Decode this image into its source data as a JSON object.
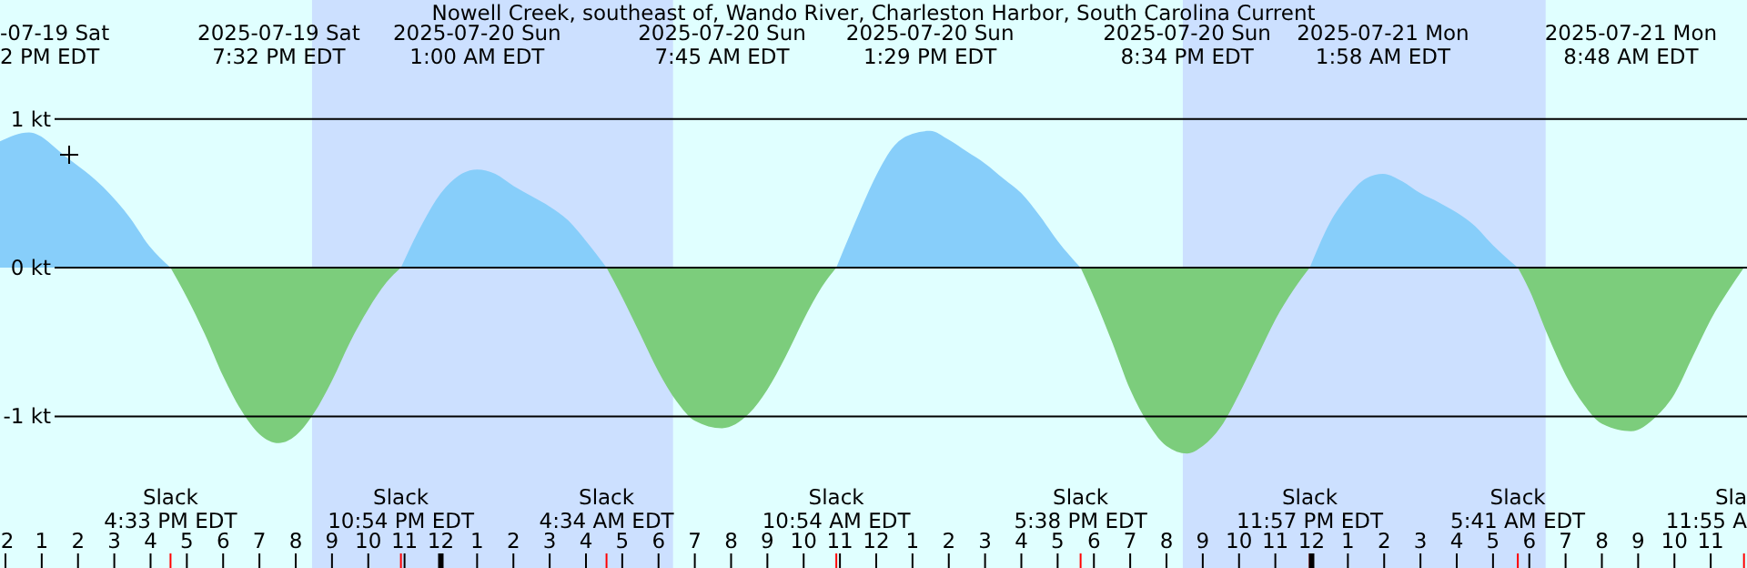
{
  "chart_data": {
    "type": "area",
    "title": "Nowell Creek, southeast of, Wando River, Charleston Harbor, South Carolina Current",
    "series": [
      {
        "color": "#87cefa",
        "x": [
          "2025-07-19T11:51",
          "2025-07-19T12:39",
          "2025-07-19T13:42",
          "2025-07-19T14:42",
          "2025-07-19T15:27",
          "2025-07-19T15:57",
          "2025-07-19T16:33"
        ],
        "values": [
          0.85,
          0.91,
          0.74,
          0.54,
          0.33,
          0.15,
          0
        ]
      },
      {
        "color": "#7ccd7c",
        "x": [
          "2025-07-19T16:33",
          "2025-07-19T17:00",
          "2025-07-19T17:30",
          "2025-07-19T18:00",
          "2025-07-19T18:30",
          "2025-07-19T19:00",
          "2025-07-19T19:32",
          "2025-07-19T20:00",
          "2025-07-19T20:30",
          "2025-07-19T21:00",
          "2025-07-19T21:30",
          "2025-07-19T22:00",
          "2025-07-19T22:30",
          "2025-07-19T22:54"
        ],
        "values": [
          0,
          -0.2,
          -0.45,
          -0.73,
          -0.96,
          -1.12,
          -1.18,
          -1.13,
          -0.98,
          -0.76,
          -0.5,
          -0.28,
          -0.1,
          0
        ]
      },
      {
        "color": "#87cefa",
        "x": [
          "2025-07-19T22:54",
          "2025-07-19T23:30",
          "2025-07-20T00:00",
          "2025-07-20T00:30",
          "2025-07-20T01:00",
          "2025-07-20T01:30",
          "2025-07-20T02:00",
          "2025-07-20T02:30",
          "2025-07-20T03:00",
          "2025-07-20T03:30",
          "2025-07-20T04:00",
          "2025-07-20T04:34"
        ],
        "values": [
          0,
          0.3,
          0.5,
          0.62,
          0.66,
          0.63,
          0.55,
          0.48,
          0.41,
          0.32,
          0.18,
          0
        ]
      },
      {
        "color": "#7ccd7c",
        "x": [
          "2025-07-20T04:34",
          "2025-07-20T05:00",
          "2025-07-20T05:30",
          "2025-07-20T06:00",
          "2025-07-20T06:30",
          "2025-07-20T07:00",
          "2025-07-20T07:45",
          "2025-07-20T08:30",
          "2025-07-20T09:00",
          "2025-07-20T09:30",
          "2025-07-20T10:00",
          "2025-07-20T10:30",
          "2025-07-20T10:54"
        ],
        "values": [
          0,
          -0.2,
          -0.45,
          -0.7,
          -0.9,
          -1.03,
          -1.08,
          -0.98,
          -0.82,
          -0.6,
          -0.35,
          -0.13,
          0
        ]
      },
      {
        "color": "#87cefa",
        "x": [
          "2025-07-20T10:54",
          "2025-07-20T11:30",
          "2025-07-20T12:00",
          "2025-07-20T12:30",
          "2025-07-20T13:00",
          "2025-07-20T13:29",
          "2025-07-20T14:00",
          "2025-07-20T14:30",
          "2025-07-20T15:00",
          "2025-07-20T15:30",
          "2025-07-20T16:00",
          "2025-07-20T16:30",
          "2025-07-20T17:00",
          "2025-07-20T17:38"
        ],
        "values": [
          0,
          0.35,
          0.62,
          0.82,
          0.9,
          0.92,
          0.86,
          0.78,
          0.7,
          0.6,
          0.5,
          0.35,
          0.18,
          0
        ]
      },
      {
        "color": "#7ccd7c",
        "x": [
          "2025-07-20T17:38",
          "2025-07-20T18:00",
          "2025-07-20T18:30",
          "2025-07-20T19:00",
          "2025-07-20T19:30",
          "2025-07-20T20:00",
          "2025-07-20T20:34",
          "2025-07-20T21:00",
          "2025-07-20T21:30",
          "2025-07-20T22:00",
          "2025-07-20T22:30",
          "2025-07-20T23:00",
          "2025-07-20T23:30",
          "2025-07-20T23:57"
        ],
        "values": [
          0,
          -0.2,
          -0.5,
          -0.82,
          -1.05,
          -1.2,
          -1.25,
          -1.2,
          -1.07,
          -0.85,
          -0.6,
          -0.35,
          -0.15,
          0
        ]
      },
      {
        "color": "#87cefa",
        "x": [
          "2025-07-20T23:57",
          "2025-07-21T00:30",
          "2025-07-21T01:00",
          "2025-07-21T01:30",
          "2025-07-21T01:58",
          "2025-07-21T02:30",
          "2025-07-21T03:00",
          "2025-07-21T03:30",
          "2025-07-21T04:00",
          "2025-07-21T04:30",
          "2025-07-21T05:00",
          "2025-07-21T05:41"
        ],
        "values": [
          0,
          0.3,
          0.48,
          0.6,
          0.63,
          0.58,
          0.5,
          0.44,
          0.37,
          0.28,
          0.15,
          0
        ]
      },
      {
        "color": "#7ccd7c",
        "x": [
          "2025-07-21T05:41",
          "2025-07-21T06:00",
          "2025-07-21T06:30",
          "2025-07-21T07:00",
          "2025-07-21T07:30",
          "2025-07-21T08:00",
          "2025-07-21T08:48",
          "2025-07-21T09:30",
          "2025-07-21T10:00",
          "2025-07-21T10:30",
          "2025-07-21T11:00",
          "2025-07-21T11:30",
          "2025-07-21T11:55"
        ],
        "values": [
          0,
          -0.15,
          -0.45,
          -0.72,
          -0.92,
          -1.05,
          -1.1,
          -1,
          -0.85,
          -0.6,
          -0.35,
          -0.15,
          0
        ]
      }
    ],
    "xlim": [
      "2025-07-19T11:51",
      "2025-07-21T12:00"
    ],
    "xticks": [
      {
        "value": "2025-07-19T12:00",
        "label": "2"
      },
      {
        "value": "2025-07-19T13:00",
        "label": "1"
      },
      {
        "value": "2025-07-19T14:00",
        "label": "2"
      },
      {
        "value": "2025-07-19T15:00",
        "label": "3"
      },
      {
        "value": "2025-07-19T16:00",
        "label": "4"
      },
      {
        "value": "2025-07-19T17:00",
        "label": "5"
      },
      {
        "value": "2025-07-19T18:00",
        "label": "6"
      },
      {
        "value": "2025-07-19T19:00",
        "label": "7"
      },
      {
        "value": "2025-07-19T20:00",
        "label": "8"
      },
      {
        "value": "2025-07-19T21:00",
        "label": "9"
      },
      {
        "value": "2025-07-19T22:00",
        "label": "10"
      },
      {
        "value": "2025-07-19T23:00",
        "label": "11"
      },
      {
        "value": "2025-07-20T00:00",
        "label": "12"
      },
      {
        "value": "2025-07-20T01:00",
        "label": "1"
      },
      {
        "value": "2025-07-20T02:00",
        "label": "2"
      },
      {
        "value": "2025-07-20T03:00",
        "label": "3"
      },
      {
        "value": "2025-07-20T04:00",
        "label": "4"
      },
      {
        "value": "2025-07-20T05:00",
        "label": "5"
      },
      {
        "value": "2025-07-20T06:00",
        "label": "6"
      },
      {
        "value": "2025-07-20T07:00",
        "label": "7"
      },
      {
        "value": "2025-07-20T08:00",
        "label": "8"
      },
      {
        "value": "2025-07-20T09:00",
        "label": "9"
      },
      {
        "value": "2025-07-20T10:00",
        "label": "10"
      },
      {
        "value": "2025-07-20T11:00",
        "label": "11"
      },
      {
        "value": "2025-07-20T12:00",
        "label": "12"
      },
      {
        "value": "2025-07-20T13:00",
        "label": "1"
      },
      {
        "value": "2025-07-20T14:00",
        "label": "2"
      },
      {
        "value": "2025-07-20T15:00",
        "label": "3"
      },
      {
        "value": "2025-07-20T16:00",
        "label": "4"
      },
      {
        "value": "2025-07-20T17:00",
        "label": "5"
      },
      {
        "value": "2025-07-20T18:00",
        "label": "6"
      },
      {
        "value": "2025-07-20T19:00",
        "label": "7"
      },
      {
        "value": "2025-07-20T20:00",
        "label": "8"
      },
      {
        "value": "2025-07-20T21:00",
        "label": "9"
      },
      {
        "value": "2025-07-20T22:00",
        "label": "10"
      },
      {
        "value": "2025-07-20T23:00",
        "label": "11"
      },
      {
        "value": "2025-07-21T00:00",
        "label": "12"
      },
      {
        "value": "2025-07-21T01:00",
        "label": "1"
      },
      {
        "value": "2025-07-21T02:00",
        "label": "2"
      },
      {
        "value": "2025-07-21T03:00",
        "label": "3"
      },
      {
        "value": "2025-07-21T04:00",
        "label": "4"
      },
      {
        "value": "2025-07-21T05:00",
        "label": "5"
      },
      {
        "value": "2025-07-21T06:00",
        "label": "6"
      },
      {
        "value": "2025-07-21T07:00",
        "label": "7"
      },
      {
        "value": "2025-07-21T08:00",
        "label": "8"
      },
      {
        "value": "2025-07-21T09:00",
        "label": "9"
      },
      {
        "value": "2025-07-21T10:00",
        "label": "10"
      },
      {
        "value": "2025-07-21T11:00",
        "label": "11"
      }
    ],
    "ylim": [
      -2.02,
      1.8
    ],
    "yticks": [
      {
        "value": 1,
        "label": "1 kt"
      },
      {
        "value": 0,
        "label": "0 kt"
      },
      {
        "value": -1,
        "label": "-1 kt"
      }
    ],
    "grid": "y",
    "bands": [
      {
        "axis": "x",
        "from": "2025-07-19T20:27",
        "to": "2025-07-20T06:24",
        "color": "#cce0ff"
      },
      {
        "axis": "x",
        "from": "2025-07-20T20:27",
        "to": "2025-07-21T06:27",
        "color": "#cce0ff"
      }
    ],
    "annotations": [
      "-07-19 Sat\n2 PM EDT",
      "2025-07-19 Sat\n7:32 PM EDT",
      "2025-07-20 Sun\n1:00 AM EDT",
      "2025-07-20 Sun\n7:45 AM EDT",
      "2025-07-20 Sun\n1:29 PM EDT",
      "2025-07-20 Sun\n8:34 PM EDT",
      "2025-07-21 Mon\n1:58 AM EDT",
      "2025-07-21 Mon\n8:48 AM EDT",
      "Slack\n4:33 PM EDT",
      "Slack\n10:54 PM EDT",
      "Slack\n4:34 AM EDT",
      "Slack\n10:54 AM EDT",
      "Slack\n5:38 PM EDT",
      "Slack\n11:57 PM EDT",
      "Slack\n5:41 AM EDT",
      "Sla\n11:55 A"
    ]
  }
}
